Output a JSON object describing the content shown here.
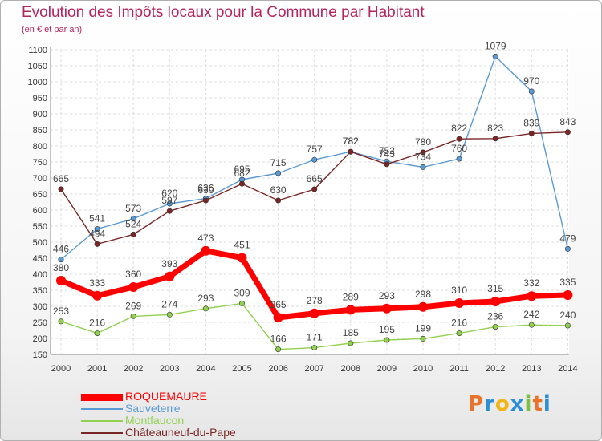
{
  "title": "Evolution des Impôts locaux pour la Commune par Habitant",
  "subtitle": "(en € et par an)",
  "logo": {
    "text": "Proxiti",
    "letter_colors": [
      "#e8732a",
      "#2a8fd6",
      "#f2b515",
      "#2a8fd6",
      "#7cc043",
      "#e8732a",
      "#2a8fd6"
    ]
  },
  "chart_data": {
    "type": "line",
    "x": [
      "2000",
      "2001",
      "2002",
      "2003",
      "2004",
      "2005",
      "2006",
      "2007",
      "2008",
      "2009",
      "2010",
      "2011",
      "2012",
      "2013",
      "2014"
    ],
    "ylim": [
      150,
      1100
    ],
    "yticks": [
      150,
      200,
      250,
      300,
      350,
      400,
      450,
      500,
      550,
      600,
      650,
      700,
      750,
      800,
      850,
      900,
      950,
      1000,
      1050,
      1100
    ],
    "grid": true,
    "legend_position": "bottom-left",
    "series": [
      {
        "name": "ROQUEMAURE",
        "color": "#ff0000",
        "values": [
          380,
          333,
          360,
          393,
          473,
          451,
          265,
          278,
          289,
          293,
          298,
          310,
          315,
          332,
          335
        ]
      },
      {
        "name": "Sauveterre",
        "color": "#5b9bd5",
        "values": [
          446,
          541,
          573,
          620,
          636,
          695,
          715,
          757,
          782,
          752,
          734,
          760,
          1079,
          970,
          479
        ]
      },
      {
        "name": "Montfaucon",
        "color": "#92d050",
        "values": [
          253,
          216,
          269,
          274,
          293,
          309,
          166,
          171,
          185,
          195,
          199,
          216,
          236,
          242,
          240
        ]
      },
      {
        "name": "Châteauneuf-du-Pape",
        "color": "#7b2626",
        "values": [
          665,
          494,
          524,
          597,
          630,
          682,
          630,
          665,
          782,
          743,
          780,
          822,
          823,
          839,
          843
        ]
      }
    ]
  }
}
